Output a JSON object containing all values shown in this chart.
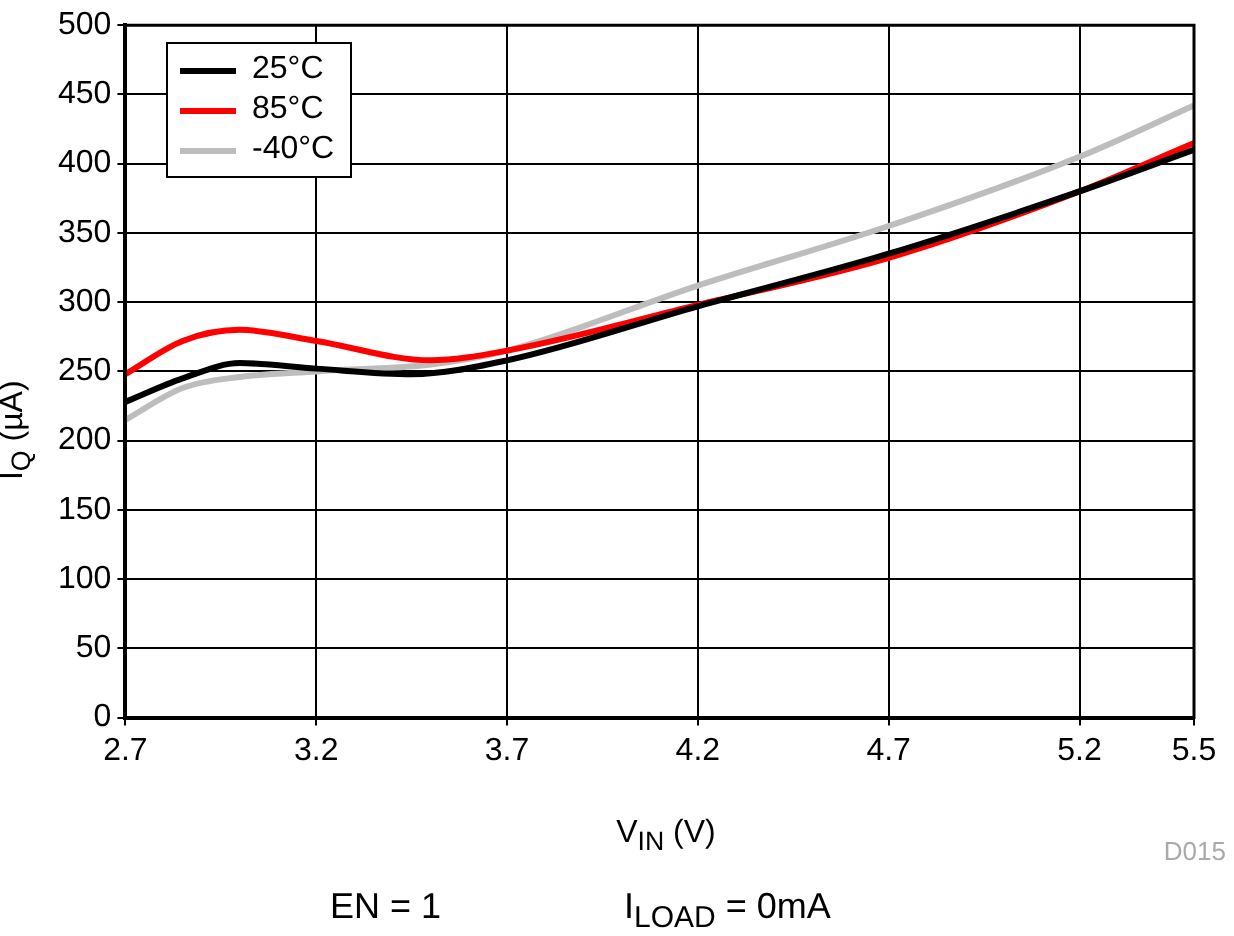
{
  "chart_data": {
    "type": "line",
    "xlabel": "V$_{IN}$ (V)",
    "ylabel": "I$_{Q}$ (µA)",
    "xlim": [
      2.7,
      5.5
    ],
    "xticks": [
      2.7,
      3.2,
      3.7,
      4.2,
      4.7,
      5.2,
      5.5
    ],
    "ylim": [
      0,
      500
    ],
    "yticks": [
      0,
      50,
      100,
      150,
      200,
      250,
      300,
      350,
      400,
      450,
      500
    ],
    "grid": true,
    "legend": "top left",
    "marker": "none",
    "line_style": "solid",
    "series": [
      {
        "name": "25°C",
        "color": "#000000",
        "x": [
          2.7,
          2.85,
          3.0,
          3.2,
          3.45,
          3.7,
          4.2,
          4.7,
          5.2,
          5.5
        ],
        "values": [
          228,
          245,
          256,
          252,
          248,
          258,
          297,
          335,
          380,
          410
        ]
      },
      {
        "name": "85°C",
        "color": "#ff0000",
        "x": [
          2.7,
          2.85,
          3.0,
          3.2,
          3.5,
          3.7,
          4.2,
          4.7,
          5.2,
          5.5
        ],
        "values": [
          248,
          272,
          280,
          272,
          258,
          265,
          298,
          332,
          380,
          415
        ]
      },
      {
        "name": "-40°C",
        "color": "#bdbdbd",
        "x": [
          2.7,
          2.85,
          3.0,
          3.2,
          3.5,
          3.7,
          4.2,
          4.7,
          5.2,
          5.5
        ],
        "values": [
          215,
          238,
          246,
          250,
          255,
          265,
          312,
          355,
          405,
          442
        ]
      }
    ],
    "annotations": [
      "D015",
      "EN = 1",
      "I$_{LOAD}$ = 0mA"
    ]
  }
}
